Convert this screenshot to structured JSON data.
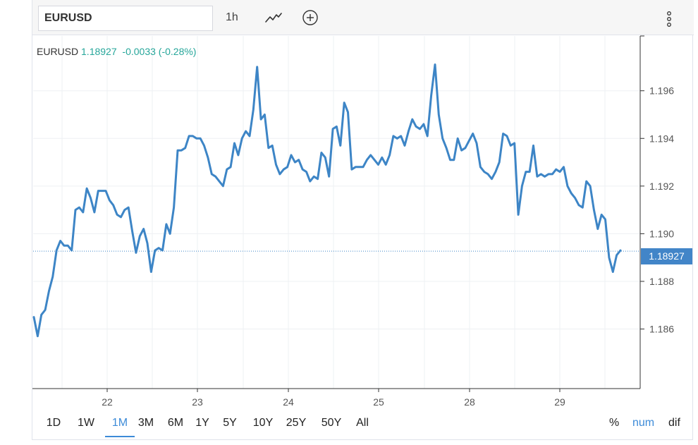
{
  "toolbar": {
    "symbol": "EURUSD",
    "interval": "1h",
    "indicators_icon": "line-chart-icon",
    "compare_icon": "plus-circle-icon",
    "menu_icon": "vertical-dots-icon"
  },
  "legend": {
    "symbol": "EURUSD",
    "price": "1.18927",
    "change": "-0.0033 (-0.28%)"
  },
  "colors": {
    "line": "#3d85c6",
    "accent": "#3d8bd8",
    "up": "#26a69a",
    "price_label_bg": "#4285c8"
  },
  "last_price_label": "1.18927",
  "ranges": [
    "1D",
    "1W",
    "1M",
    "3M",
    "6M",
    "1Y",
    "5Y",
    "10Y",
    "25Y",
    "50Y",
    "All"
  ],
  "active_range": "1M",
  "scale_modes": [
    "%",
    "num",
    "dif"
  ],
  "active_scale": "num",
  "chart_data": {
    "type": "line",
    "x_tick_labels": [
      "22",
      "23",
      "24",
      "25",
      "28",
      "29"
    ],
    "y_tick_labels": [
      "1.186",
      "1.188",
      "1.190",
      "1.192",
      "1.194",
      "1.196"
    ],
    "ylim": [
      1.1835,
      1.1983
    ],
    "last_value": 1.18927,
    "grid": true,
    "series": [
      {
        "values": [
          1.1865,
          1.1857,
          1.1866,
          1.1868,
          1.1876,
          1.1882,
          1.1893,
          1.1897,
          1.1895,
          1.1895,
          1.1893,
          1.191,
          1.1911,
          1.1909,
          1.1919,
          1.1915,
          1.1909,
          1.1918,
          1.1918,
          1.1918,
          1.1914,
          1.1912,
          1.1908,
          1.1907,
          1.191,
          1.1911,
          1.1901,
          1.1892,
          1.1899,
          1.1902,
          1.1896,
          1.1884,
          1.1893,
          1.1894,
          1.1893,
          1.1904,
          1.19,
          1.1911,
          1.1935,
          1.1935,
          1.1936,
          1.1941,
          1.1941,
          1.194,
          1.194,
          1.1937,
          1.1932,
          1.1925,
          1.1924,
          1.1922,
          1.192,
          1.1927,
          1.1928,
          1.1938,
          1.1933,
          1.194,
          1.1943,
          1.1941,
          1.1952,
          1.197,
          1.1948,
          1.195,
          1.1936,
          1.1937,
          1.1929,
          1.1925,
          1.1927,
          1.1928,
          1.1933,
          1.193,
          1.1931,
          1.1927,
          1.1926,
          1.1922,
          1.1924,
          1.1923,
          1.1934,
          1.1932,
          1.1924,
          1.1944,
          1.1945,
          1.1937,
          1.1955,
          1.1951,
          1.1927,
          1.1928,
          1.1928,
          1.1928,
          1.1931,
          1.1933,
          1.1931,
          1.1929,
          1.1932,
          1.1929,
          1.1933,
          1.1941,
          1.194,
          1.1941,
          1.1937,
          1.1943,
          1.1948,
          1.1945,
          1.1944,
          1.1946,
          1.1941,
          1.1958,
          1.1971,
          1.195,
          1.194,
          1.1936,
          1.1931,
          1.1931,
          1.194,
          1.1935,
          1.1936,
          1.1939,
          1.1942,
          1.1938,
          1.1928,
          1.1926,
          1.1925,
          1.1923,
          1.1926,
          1.193,
          1.1942,
          1.1941,
          1.1937,
          1.1938,
          1.1908,
          1.192,
          1.1926,
          1.1926,
          1.1937,
          1.1924,
          1.1925,
          1.1924,
          1.1925,
          1.1925,
          1.1927,
          1.1926,
          1.1928,
          1.192,
          1.1917,
          1.1915,
          1.1912,
          1.1911,
          1.1922,
          1.192,
          1.191,
          1.1902,
          1.1908,
          1.1906,
          1.189,
          1.1884,
          1.1891,
          1.1893
        ]
      }
    ]
  }
}
